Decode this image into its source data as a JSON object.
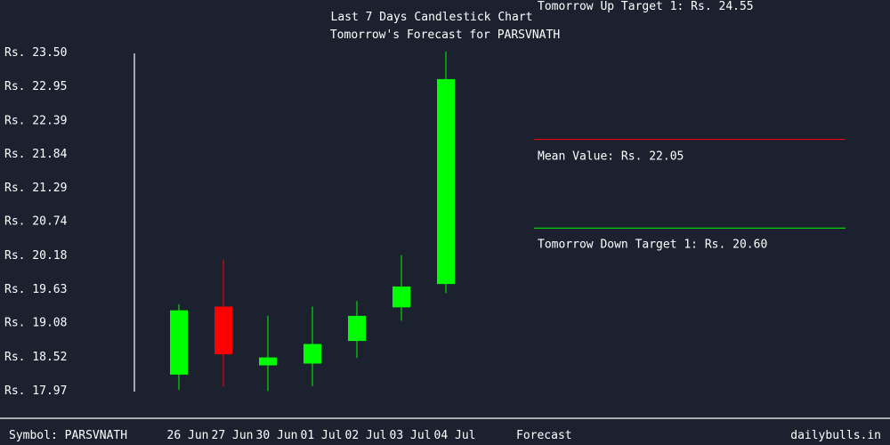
{
  "colors": {
    "background": "#1c2130",
    "up": "#00ff00",
    "down": "#ff0000",
    "text": "#ffffff",
    "mean_line": "#ff0000",
    "down_target_line": "#00ff00"
  },
  "footer": {
    "symbol_label": "Symbol: PARSVNATH",
    "brand": "dailybulls.in"
  },
  "chart_data": {
    "type": "candlestick",
    "title": "Last 7 Days Candlestick Chart",
    "subtitle": "Tomorrow's Forecast for PARSVNATH",
    "y_tick_labels": [
      "Rs. 23.50",
      "Rs. 22.95",
      "Rs. 22.39",
      "Rs. 21.84",
      "Rs. 21.29",
      "Rs. 20.74",
      "Rs. 20.18",
      "Rs. 19.63",
      "Rs. 19.08",
      "Rs. 18.52",
      "Rs. 17.97"
    ],
    "y_ticks": [
      23.5,
      22.95,
      22.39,
      21.84,
      21.29,
      20.74,
      20.18,
      19.63,
      19.08,
      18.52,
      17.97
    ],
    "ylim": [
      17.97,
      23.5
    ],
    "categories": [
      "26 Jun",
      "27 Jun",
      "30 Jun",
      "01 Jul",
      "02 Jul",
      "03 Jul",
      "04 Jul"
    ],
    "forecast_label": "Forecast",
    "candles": [
      {
        "date": "26 Jun",
        "open": 18.22,
        "high": 19.37,
        "low": 17.97,
        "close": 19.27
      },
      {
        "date": "27 Jun",
        "open": 19.33,
        "high": 20.1,
        "low": 18.02,
        "close": 18.55
      },
      {
        "date": "30 Jun",
        "open": 18.37,
        "high": 19.18,
        "low": 17.95,
        "close": 18.5
      },
      {
        "date": "01 Jul",
        "open": 18.4,
        "high": 19.33,
        "low": 18.03,
        "close": 18.72
      },
      {
        "date": "02 Jul",
        "open": 18.77,
        "high": 19.42,
        "low": 18.49,
        "close": 19.18
      },
      {
        "date": "03 Jul",
        "open": 19.32,
        "high": 20.17,
        "low": 19.1,
        "close": 19.66
      },
      {
        "date": "04 Jul",
        "open": 19.7,
        "high": 23.5,
        "low": 19.55,
        "close": 23.05
      }
    ],
    "forecast": {
      "up_target_label": "Tomorrow Up Target 1: Rs. 24.55",
      "up_target": 24.55,
      "mean_label": "Mean Value: Rs. 22.05",
      "mean": 22.05,
      "down_target_label": "Tomorrow Down Target 1: Rs. 20.60",
      "down_target": 20.6
    }
  }
}
